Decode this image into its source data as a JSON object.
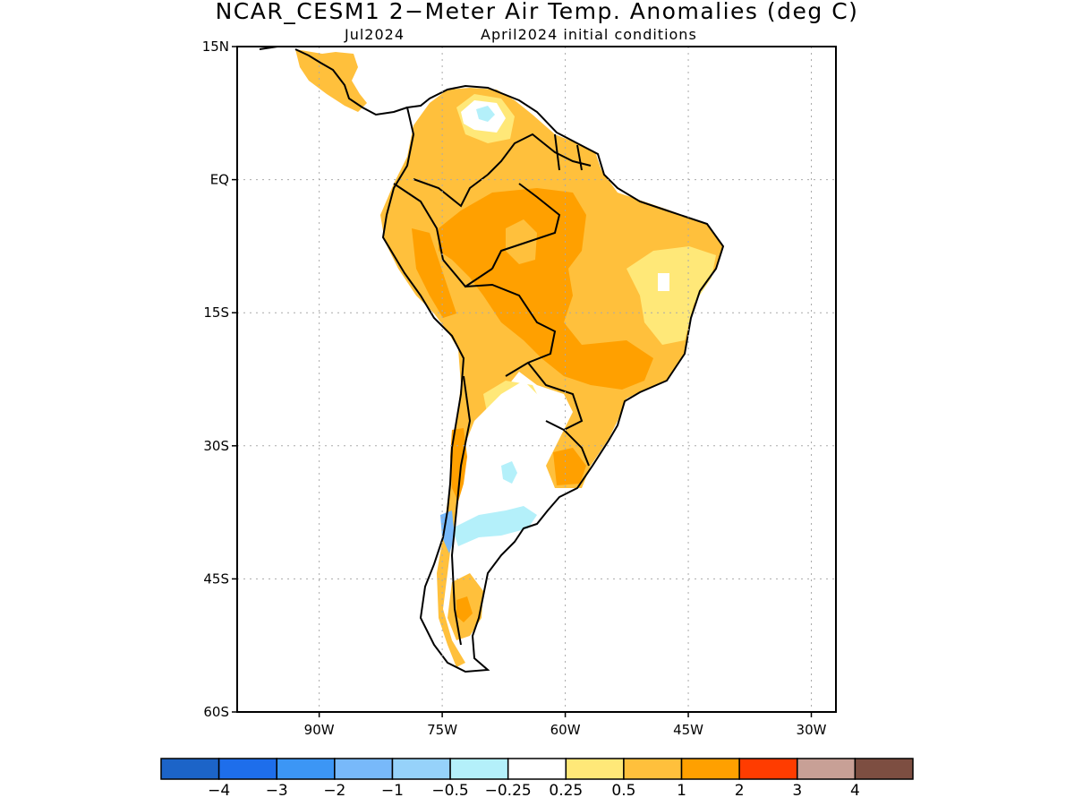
{
  "header": {
    "title": "NCAR_CESM1 2−Meter Air Temp. Anomalies (deg C)",
    "valid_month": "Jul2024",
    "init_conditions": "April2024 initial conditions"
  },
  "map": {
    "region": "South America",
    "lon_range": [
      -100,
      -27
    ],
    "lat_range": [
      -60,
      15
    ],
    "grid": true,
    "lat_labels": [
      "15N",
      "EQ",
      "15S",
      "30S",
      "45S",
      "60S"
    ],
    "lat_values": [
      15,
      0,
      -15,
      -30,
      -45,
      -60
    ],
    "lon_labels": [
      "90W",
      "75W",
      "60W",
      "45W",
      "30W"
    ],
    "lon_values": [
      -90,
      -75,
      -60,
      -45,
      -30
    ]
  },
  "colorbar": {
    "colors": [
      "#1c64c8",
      "#1e6eeb",
      "#3c96f5",
      "#78b9fa",
      "#96d2fa",
      "#b4f0fa",
      "#ffffff",
      "#ffe878",
      "#ffc03c",
      "#ffa000",
      "#ff3c00",
      "#c8a096",
      "#7d4e41"
    ],
    "labels": [
      "−4",
      "−3",
      "−2",
      "−1",
      "−0.5",
      "−0.25",
      "0.25",
      "0.5",
      "1",
      "2",
      "3",
      "4"
    ]
  }
}
